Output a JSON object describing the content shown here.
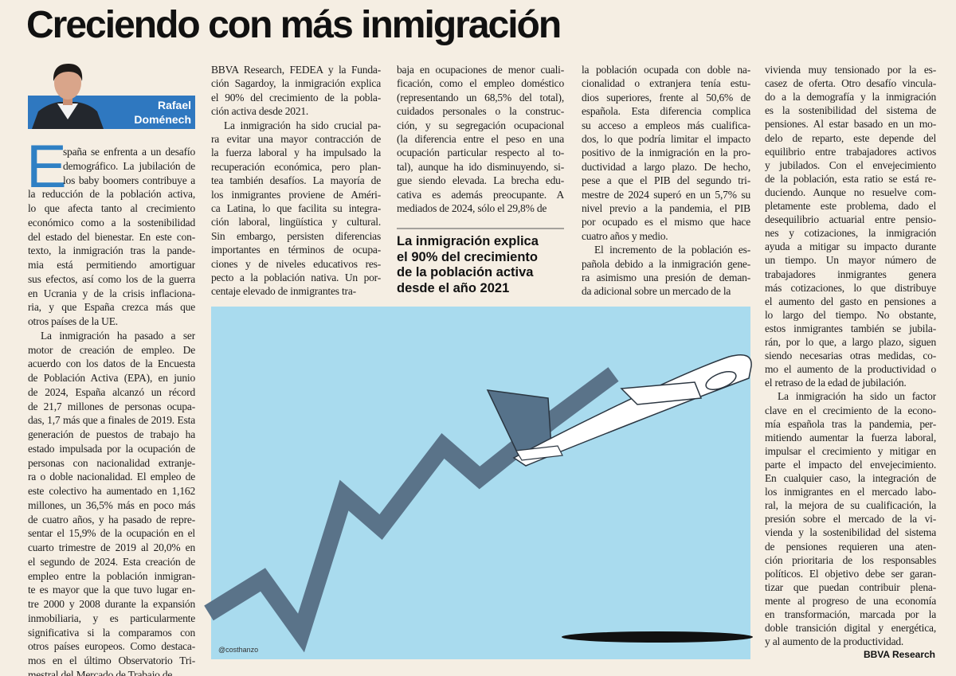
{
  "header": {
    "title": "Creciendo con más inmigración"
  },
  "author": {
    "name_lines": [
      "Rafael",
      "Doménech"
    ]
  },
  "columns": [
    {
      "dropcap": "E",
      "paragraphs": [
        {
          "lines": [
            "spaña se enfrenta a un desafío",
            "demográfico. La jubilación de",
            "los baby boomers contribuye a",
            "la reducción de la población activa,",
            "lo que afecta tanto al crecimiento",
            "económico como a la sostenibilidad",
            "del estado del bienestar. En este con-",
            "texto, la inmigración tras la pande-",
            "mia está permitiendo amortiguar",
            "sus efectos, así como los de la guerra",
            "en Ucrania y de la crisis inflaciona-",
            "ria, y que España crezca más que",
            "otros países de la UE."
          ]
        },
        {
          "lines": [
            "La inmigración ha pasado a ser",
            "motor de creación de empleo. De",
            "acuerdo con los datos de la Encuesta",
            "de Población Activa (EPA), en junio",
            "de 2024, España alcanzó un récord",
            "de 21,7 millones de personas ocupa-",
            "das, 1,7 más que a finales de 2019. Esta",
            "generación de puestos de trabajo ha",
            "estado impulsada por la ocupación de",
            "personas con nacionalidad extranje-",
            "ra o doble nacionalidad. El empleo de",
            "este colectivo ha aumentado en 1,162",
            "millones, un 36,5% más en poco más",
            "de cuatro años, y ha pasado de repre-",
            "sentar el 15,9% de la ocupación en el",
            "cuarto trimestre de 2019 al 20,0% en",
            "el segundo de 2024. Esta creación de",
            "empleo entre la población inmigran-",
            "te es mayor que la que tuvo lugar en-",
            "tre 2000 y 2008 durante la expansión",
            "inmobiliaria, y es particularmente",
            "significativa si la comparamos con",
            "otros países europeos. Como destaca-",
            "mos en el último Observatorio Tri-",
            "mestral del Mercado de Trabajo de"
          ]
        }
      ]
    },
    {
      "paragraphs": [
        {
          "lines": [
            "BBVA Research, FEDEA y la Funda-",
            "ción Sagardoy, la inmigración explica",
            "el 90% del crecimiento de la pobla-",
            "ción activa desde 2021."
          ]
        },
        {
          "lines": [
            "La inmigración ha sido crucial pa-",
            "ra evitar una mayor contracción de",
            "la fuerza laboral y ha impulsado la",
            "recuperación económica, pero plan-",
            "tea también desafíos. La mayoría de",
            "los inmigrantes proviene de Améri-",
            "ca Latina, lo que facilita su integra-",
            "ción laboral, lingüística y cultural.",
            "Sin embargo, persisten diferencias",
            "importantes en términos de ocupa-",
            "ciones y de niveles educativos res-",
            "pecto a la población nativa. Un por-",
            "centaje elevado de inmigrantes tra-"
          ]
        }
      ]
    },
    {
      "paragraphs": [
        {
          "lines": [
            "baja en ocupaciones de menor cuali-",
            "ficación, como el empleo doméstico",
            "(representando un 68,5% del total),",
            "cuidados personales o la construc-",
            "ción, y su segregación ocupacional",
            "(la diferencia entre el peso en una",
            "ocupación particular respecto al to-",
            "tal), aunque ha ido disminuyendo, si-",
            "gue siendo elevada. La brecha edu-",
            "cativa es además preocupante. A",
            "mediados de 2024, sólo el 29,8% de"
          ]
        }
      ]
    },
    {
      "paragraphs": [
        {
          "lines": [
            "la población ocupada con doble na-",
            "cionalidad o extranjera tenía estu-",
            "dios superiores, frente al 50,6% de",
            "española. Esta diferencia complica",
            "su acceso a empleos más cualifica-",
            "dos, lo que podría limitar el impacto",
            "positivo de la inmigración en la pro-",
            "ductividad a largo plazo. De hecho,",
            "pese a que el PIB del segundo tri-",
            "mestre de 2024 superó en un 5,7% su",
            "nivel previo a la pandemia, el PIB",
            "por ocupado es el mismo que hace",
            "cuatro años y medio."
          ]
        },
        {
          "lines": [
            "El incremento de la población es-",
            "pañola debido a la inmigración gene-",
            "ra asimismo una presión de deman-",
            "da adicional sobre un mercado de la"
          ]
        }
      ]
    },
    {
      "paragraphs": [
        {
          "lines": [
            "vivienda muy tensionado por la es-",
            "casez de oferta. Otro desafío vincula-",
            "do a la demografía y la inmigración",
            "es la sostenibilidad del sistema de",
            "pensiones. Al estar basado en un mo-",
            "delo de reparto, este depende del",
            "equilibrio entre trabajadores activos",
            "y jubilados. Con el envejecimiento",
            "de la población, esta ratio se está re-",
            "duciendo. Aunque no resuelve com-",
            "pletamente este problema, dado el",
            "desequilibrio actuarial entre pensio-",
            "nes y cotizaciones, la inmigración",
            "ayuda a mitigar su impacto durante",
            "un tiempo. Un mayor número de",
            "trabajadores inmigrantes genera",
            "más cotizaciones, lo que distribuye",
            "el aumento del gasto en pensiones a",
            "lo largo del tiempo. No obstante,",
            "estos inmigrantes también se jubila-",
            "rán, por lo que, a largo plazo, siguen",
            "siendo necesarias otras medidas, co-",
            "mo el aumento de la productividad o",
            "el retraso de la edad de jubilación."
          ]
        },
        {
          "lines": [
            "La inmigración ha sido un factor",
            "clave en el crecimiento de la econo-",
            "mía española tras la pandemia, per-",
            "mitiendo aumentar la fuerza laboral,",
            "impulsar el crecimiento y mitigar en",
            "parte el impacto del envejecimiento.",
            "En cualquier caso, la integración de",
            "los inmigrantes en el mercado labo-",
            "ral, la mejora de su cualificación, la",
            "presión sobre el mercado de la vi-",
            "vienda y la sostenibilidad del sistema",
            "de pensiones requieren una aten-",
            "ción prioritaria de los responsables",
            "políticos. El objetivo debe ser garan-",
            "tizar que puedan contribuir plena-",
            "mente al progreso de una economía",
            "en transformación, marcada por la",
            "doble transición digital y energética,",
            "y al aumento de la productividad."
          ]
        }
      ]
    }
  ],
  "pull_quote": {
    "lines": [
      "La inmigración explica",
      "el 90% del crecimiento",
      "de la población activa",
      "desde el año 2021"
    ]
  },
  "illustration": {
    "credit": "@costhanzo"
  },
  "footer": {
    "source": "BBVA Research"
  }
}
